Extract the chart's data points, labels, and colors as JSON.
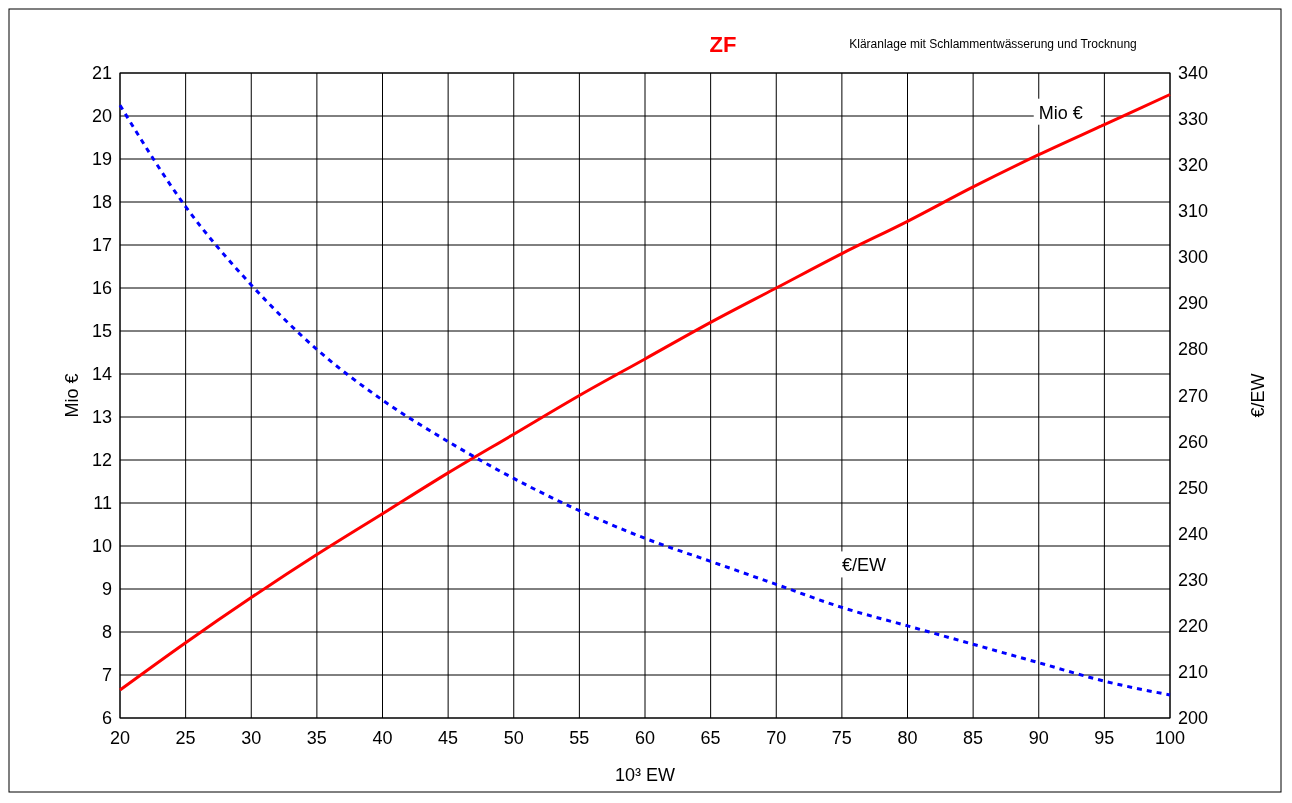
{
  "chart_data": {
    "type": "line",
    "title": "ZF",
    "subtitle": "Kläranlage mit Schlammentwässerung und Trocknung",
    "xlabel": "10³ EW",
    "ylabel": "Mio €",
    "y2label": "€/EW",
    "x": [
      20,
      25,
      30,
      35,
      40,
      45,
      50,
      55,
      60,
      65,
      70,
      75,
      80,
      85,
      90,
      95,
      100
    ],
    "series": [
      {
        "name": "Mio €",
        "color": "#ff0000",
        "line_style": "solid",
        "values": [
          6.65,
          7.75,
          8.8,
          9.8,
          10.75,
          11.7,
          12.6,
          13.5,
          14.35,
          15.2,
          16.0,
          16.8,
          17.55,
          18.35,
          19.1,
          19.8,
          20.5
        ]
      },
      {
        "name": "€/EW",
        "color": "#0000ff",
        "line_style": "dashed",
        "axis": "y2",
        "values": [
          333,
          311,
          294,
          280,
          269,
          260,
          252,
          245,
          239,
          234,
          229,
          224,
          220,
          216,
          212,
          208,
          205
        ]
      }
    ],
    "xlim": [
      20,
      100
    ],
    "xticks": [
      20,
      25,
      30,
      35,
      40,
      45,
      50,
      55,
      60,
      65,
      70,
      75,
      80,
      85,
      90,
      95,
      100
    ],
    "ylim": [
      6,
      21
    ],
    "yticks": [
      6,
      7,
      8,
      9,
      10,
      11,
      12,
      13,
      14,
      15,
      16,
      17,
      18,
      19,
      20,
      21
    ],
    "y2lim": [
      200,
      340
    ],
    "y2ticks": [
      200,
      210,
      220,
      230,
      240,
      250,
      260,
      270,
      280,
      290,
      300,
      310,
      320,
      330,
      340
    ],
    "grid": true,
    "marker": "none"
  }
}
